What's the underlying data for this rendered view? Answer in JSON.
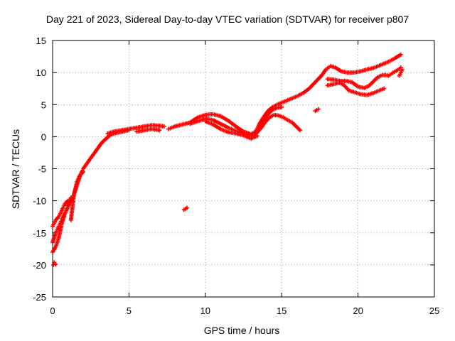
{
  "chart_data": {
    "type": "scatter",
    "title": "Day 221 of 2023, Sidereal Day-to-day VTEC variation (SDTVAR) for receiver p807",
    "xlabel": "GPS time / hours",
    "ylabel": "SDTVAR / TECUs",
    "xlim": [
      0,
      25
    ],
    "ylim": [
      -25,
      15
    ],
    "xticks": [
      0,
      5,
      10,
      15,
      20,
      25
    ],
    "yticks": [
      -25,
      -20,
      -15,
      -10,
      -5,
      0,
      5,
      10,
      15
    ],
    "grid": true,
    "marker": "+",
    "color": "#ff0000",
    "series": [
      {
        "name": "track-a",
        "points": [
          [
            0.05,
            -20.0
          ],
          [
            0.1,
            -19.6
          ],
          [
            0.2,
            -19.9
          ]
        ]
      },
      {
        "name": "track-b",
        "points": [
          [
            0.0,
            -18.0
          ],
          [
            0.2,
            -17.2
          ],
          [
            0.4,
            -15.8
          ],
          [
            0.6,
            -13.5
          ],
          [
            0.8,
            -12.0
          ],
          [
            1.0,
            -11.0
          ],
          [
            1.2,
            -10.0
          ],
          [
            1.4,
            -9.0
          ],
          [
            1.6,
            -7.5
          ],
          [
            1.8,
            -6.0
          ],
          [
            2.0,
            -5.0
          ],
          [
            2.3,
            -4.0
          ],
          [
            2.6,
            -3.0
          ],
          [
            2.9,
            -2.0
          ],
          [
            3.2,
            -1.0
          ],
          [
            3.5,
            -0.3
          ],
          [
            3.8,
            0.3
          ],
          [
            4.2,
            0.6
          ],
          [
            4.6,
            0.8
          ],
          [
            5.0,
            1.0
          ]
        ]
      },
      {
        "name": "track-c",
        "points": [
          [
            0.0,
            -16.5
          ],
          [
            0.2,
            -15.0
          ],
          [
            0.4,
            -14.0
          ],
          [
            0.6,
            -13.0
          ],
          [
            0.8,
            -12.0
          ],
          [
            1.0,
            -11.0
          ],
          [
            1.2,
            -9.5
          ]
        ]
      },
      {
        "name": "track-d",
        "points": [
          [
            0.0,
            -14.0
          ],
          [
            0.2,
            -13.0
          ],
          [
            0.4,
            -12.5
          ],
          [
            0.6,
            -11.5
          ],
          [
            0.8,
            -10.5
          ],
          [
            1.0,
            -10.0
          ]
        ]
      },
      {
        "name": "track-e",
        "points": [
          [
            1.2,
            -13.0
          ],
          [
            1.3,
            -11.0
          ],
          [
            1.4,
            -9.0
          ],
          [
            1.5,
            -8.0
          ],
          [
            1.6,
            -7.0
          ],
          [
            1.8,
            -6.0
          ],
          [
            2.0,
            -5.5
          ]
        ]
      },
      {
        "name": "track-f",
        "points": [
          [
            3.6,
            0.5
          ],
          [
            4.0,
            0.8
          ],
          [
            4.5,
            1.0
          ],
          [
            5.0,
            1.2
          ],
          [
            5.5,
            1.4
          ],
          [
            6.0,
            1.6
          ],
          [
            6.5,
            1.8
          ],
          [
            7.0,
            1.7
          ],
          [
            7.3,
            1.6
          ]
        ]
      },
      {
        "name": "track-g",
        "points": [
          [
            5.5,
            0.8
          ],
          [
            6.0,
            1.0
          ],
          [
            6.5,
            1.2
          ],
          [
            7.0,
            1.0
          ]
        ]
      },
      {
        "name": "track-h",
        "points": [
          [
            7.6,
            1.2
          ],
          [
            8.0,
            1.6
          ],
          [
            8.5,
            1.9
          ],
          [
            9.0,
            2.2
          ],
          [
            9.5,
            3.0
          ],
          [
            10.0,
            3.4
          ],
          [
            10.5,
            3.5
          ],
          [
            11.0,
            3.2
          ],
          [
            11.5,
            2.5
          ],
          [
            12.0,
            1.6
          ],
          [
            12.5,
            0.8
          ],
          [
            13.0,
            0.4
          ],
          [
            13.3,
            0.8
          ],
          [
            13.5,
            1.8
          ],
          [
            13.8,
            3.0
          ],
          [
            14.1,
            4.0
          ],
          [
            14.4,
            4.6
          ],
          [
            14.7,
            5.0
          ],
          [
            15.0,
            5.3
          ],
          [
            15.3,
            5.6
          ],
          [
            15.6,
            5.9
          ],
          [
            16.0,
            6.3
          ],
          [
            16.4,
            6.8
          ],
          [
            16.8,
            7.5
          ],
          [
            17.2,
            8.5
          ],
          [
            17.6,
            9.5
          ],
          [
            17.9,
            10.5
          ],
          [
            18.2,
            11.0
          ],
          [
            18.5,
            10.8
          ],
          [
            18.9,
            10.2
          ],
          [
            19.3,
            10.0
          ],
          [
            19.7,
            10.0
          ],
          [
            20.2,
            10.2
          ],
          [
            20.6,
            10.5
          ],
          [
            21.0,
            10.7
          ],
          [
            21.3,
            11.0
          ],
          [
            21.6,
            11.3
          ],
          [
            22.0,
            11.7
          ],
          [
            22.4,
            12.2
          ],
          [
            22.8,
            12.8
          ]
        ]
      },
      {
        "name": "track-i",
        "points": [
          [
            9.0,
            2.0
          ],
          [
            9.5,
            2.4
          ],
          [
            10.0,
            2.8
          ],
          [
            10.5,
            2.6
          ],
          [
            11.0,
            2.0
          ],
          [
            11.5,
            1.4
          ],
          [
            12.0,
            0.9
          ],
          [
            12.5,
            0.5
          ],
          [
            13.0,
            0.1
          ],
          [
            13.3,
            0.4
          ],
          [
            13.6,
            1.2
          ],
          [
            13.9,
            2.2
          ],
          [
            14.2,
            3.0
          ],
          [
            14.5,
            3.4
          ],
          [
            14.8,
            3.3
          ],
          [
            15.1,
            3.0
          ],
          [
            15.4,
            2.6
          ],
          [
            15.7,
            2.2
          ],
          [
            16.2,
            1.0
          ]
        ]
      },
      {
        "name": "track-j",
        "points": [
          [
            10.0,
            2.4
          ],
          [
            10.5,
            1.9
          ],
          [
            11.0,
            1.2
          ],
          [
            11.5,
            0.7
          ],
          [
            12.0,
            0.5
          ],
          [
            12.5,
            0.2
          ],
          [
            13.0,
            -0.3
          ],
          [
            13.4,
            0.1
          ]
        ]
      },
      {
        "name": "track-k",
        "points": [
          [
            13.5,
            1.5
          ],
          [
            13.8,
            2.5
          ],
          [
            14.1,
            3.5
          ],
          [
            14.4,
            4.2
          ],
          [
            14.7,
            4.5
          ],
          [
            15.0,
            4.6
          ]
        ]
      },
      {
        "name": "track-l",
        "points": [
          [
            18.0,
            9.0
          ],
          [
            18.4,
            8.9
          ],
          [
            18.8,
            8.7
          ],
          [
            19.2,
            8.7
          ],
          [
            19.6,
            8.5
          ],
          [
            20.0,
            7.8
          ],
          [
            20.4,
            7.6
          ],
          [
            20.7,
            7.9
          ],
          [
            21.0,
            8.6
          ],
          [
            21.3,
            9.3
          ],
          [
            21.6,
            9.6
          ],
          [
            21.9,
            9.6
          ]
        ]
      },
      {
        "name": "track-m",
        "points": [
          [
            18.0,
            8.0
          ],
          [
            18.4,
            8.2
          ],
          [
            18.8,
            8.4
          ],
          [
            19.1,
            8.0
          ],
          [
            19.4,
            7.2
          ],
          [
            19.8,
            6.9
          ],
          [
            20.2,
            6.6
          ],
          [
            20.6,
            6.5
          ],
          [
            21.0,
            6.8
          ],
          [
            21.4,
            7.2
          ],
          [
            21.7,
            7.5
          ]
        ]
      },
      {
        "name": "track-n",
        "points": [
          [
            22.0,
            9.5
          ],
          [
            22.3,
            10.0
          ],
          [
            22.6,
            10.4
          ],
          [
            22.8,
            10.8
          ]
        ]
      },
      {
        "name": "track-o",
        "points": [
          [
            22.7,
            9.5
          ],
          [
            22.8,
            10.0
          ],
          [
            22.9,
            10.5
          ]
        ]
      },
      {
        "name": "track-p",
        "points": [
          [
            17.2,
            4.0
          ],
          [
            17.4,
            4.3
          ]
        ]
      },
      {
        "name": "track-q",
        "points": [
          [
            8.6,
            -11.4
          ],
          [
            8.8,
            -11.1
          ]
        ]
      }
    ]
  }
}
